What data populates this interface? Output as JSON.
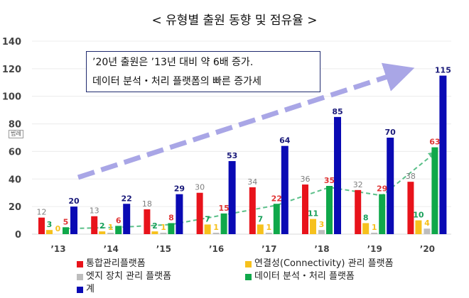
{
  "title": "< 유형별 출원 동향 및 점유율 >",
  "annotation": {
    "line1": "’20년 출원은 ’13년 대비 약 6배 증가.",
    "line2": "데이터 분석・처리 플랫폼의 빠른 증가세"
  },
  "legend_tag": "범례",
  "chart_data": {
    "type": "bar",
    "categories": [
      "’13",
      "’14",
      "’15",
      "’16",
      "’17",
      "’18",
      "’19",
      "’20"
    ],
    "ylim": [
      0,
      140
    ],
    "yticks": [
      "0",
      "20",
      "40",
      "60",
      "80",
      "100",
      "120",
      "140"
    ],
    "grid": true,
    "legend_position": "bottom",
    "series": [
      {
        "name": "통합관리플랫폼",
        "color": "#e8131b",
        "label_color": "#7f7f7f",
        "values": [
          12,
          13,
          18,
          30,
          34,
          36,
          32,
          38
        ]
      },
      {
        "name": "연결성(Connectivity) 관리 플랫폼",
        "color": "#f6c11d",
        "label_color": "#19a05a",
        "values": [
          3,
          2,
          2,
          7,
          7,
          11,
          8,
          10
        ]
      },
      {
        "name": "엣지 장치 관리 플랫폼",
        "color": "#bdbdbd",
        "label_color": "#f6c11d",
        "values": [
          0,
          1,
          1,
          1,
          1,
          3,
          1,
          4
        ]
      },
      {
        "name": "데이터 분석・처리 플랫폼",
        "color": "#0fa84a",
        "label_color": "#e03535",
        "values": [
          5,
          6,
          8,
          15,
          22,
          35,
          29,
          63
        ]
      },
      {
        "name": "계",
        "color": "#0a0ab4",
        "label_color": "#1a1a7a",
        "values": [
          20,
          22,
          29,
          53,
          64,
          85,
          70,
          115
        ]
      }
    ],
    "trend_line": {
      "series": "데이터 분석・처리 플랫폼",
      "color": "#5cc08a",
      "style": "dashed"
    },
    "growth_arrow_color": "#a9a6e6"
  }
}
